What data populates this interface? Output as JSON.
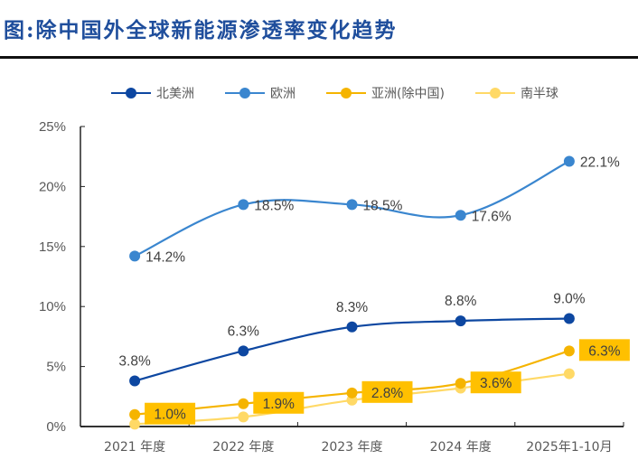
{
  "title": "图:除中国外全球新能源渗透率变化趋势",
  "chart_data": {
    "type": "line",
    "title": "图:除中国外全球新能源渗透率变化趋势",
    "xlabel": "",
    "ylabel": "",
    "categories": [
      "2021 年度",
      "2022 年度",
      "2023 年度",
      "2024 年度",
      "2025年1-10月"
    ],
    "ylim": [
      0,
      25
    ],
    "yticks": [
      "0%",
      "5%",
      "10%",
      "15%",
      "20%",
      "25%"
    ],
    "ytick_values": [
      0,
      5,
      10,
      15,
      20,
      25
    ],
    "grid": false,
    "legend_position": "top",
    "series": [
      {
        "name": "北美洲",
        "color": "#0d47a1",
        "values": [
          3.8,
          6.3,
          8.3,
          8.8,
          9.0
        ],
        "labels": [
          "3.8%",
          "6.3%",
          "8.3%",
          "8.8%",
          "9.0%"
        ],
        "label_style": "above"
      },
      {
        "name": "欧洲",
        "color": "#3a86cf",
        "values": [
          14.2,
          18.5,
          18.5,
          17.6,
          22.1
        ],
        "labels": [
          "14.2%",
          "18.5%",
          "18.5%",
          "17.6%",
          "22.1%"
        ],
        "label_style": "right"
      },
      {
        "name": "亚洲(除中国)",
        "color": "#f5b400",
        "values": [
          1.0,
          1.9,
          2.8,
          3.6,
          6.3
        ],
        "labels": [
          "1.0%",
          "1.9%",
          "2.8%",
          "3.6%",
          "6.3%"
        ],
        "label_style": "boxed"
      },
      {
        "name": "南半球",
        "color": "#ffd966",
        "values": [
          0.2,
          0.8,
          2.2,
          3.2,
          4.4
        ],
        "labels": [],
        "label_style": "none"
      }
    ]
  }
}
